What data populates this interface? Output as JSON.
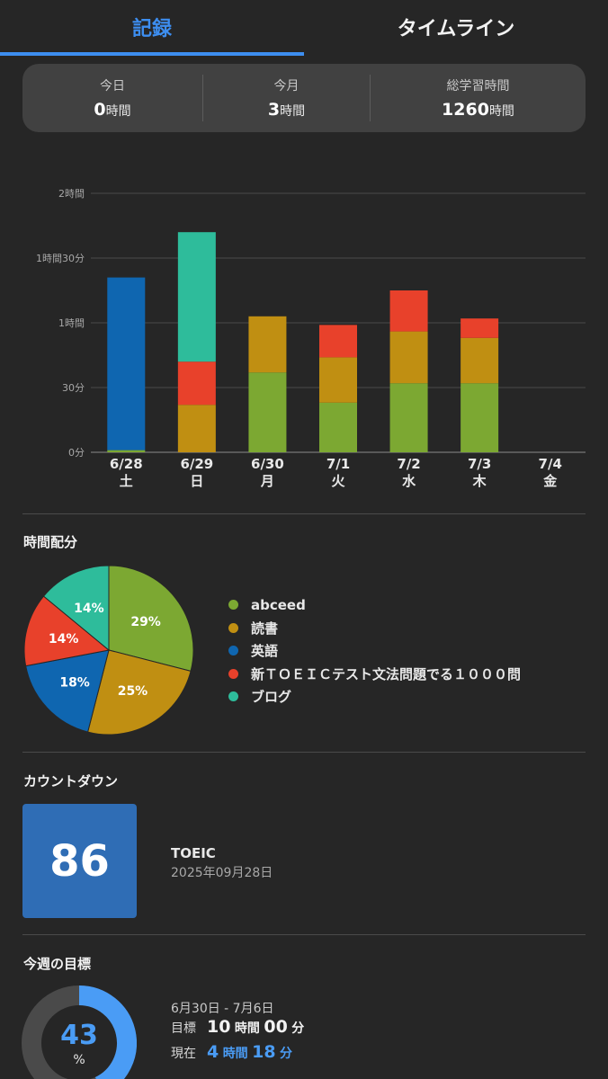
{
  "tabs": [
    {
      "label": "記録",
      "active": true
    },
    {
      "label": "タイムライン",
      "active": false
    }
  ],
  "summary": {
    "today": {
      "label": "今日",
      "value": "0",
      "unit": "時間"
    },
    "month": {
      "label": "今月",
      "value": "3",
      "unit": "時間"
    },
    "total": {
      "label": "総学習時間",
      "value": "1260",
      "unit": "時間"
    }
  },
  "colors": {
    "abceed": "#7ca832",
    "reading": "#c08f12",
    "english": "#0f66b0",
    "toeic1000": "#e8412b",
    "blog": "#2ebc9b",
    "accent": "#3d8ef0"
  },
  "chart_data": {
    "type": "bar",
    "stacked": true,
    "categories": [
      "6/28",
      "6/29",
      "6/30",
      "7/1",
      "7/2",
      "7/3",
      "7/4"
    ],
    "weekdays": [
      "土",
      "日",
      "月",
      "火",
      "水",
      "木",
      "金"
    ],
    "y_unit": "minutes",
    "ylim": [
      0,
      120
    ],
    "yticks": [
      {
        "value": 0,
        "label": "0分"
      },
      {
        "value": 30,
        "label": "30分"
      },
      {
        "value": 60,
        "label": "1時間"
      },
      {
        "value": 90,
        "label": "1時間30分"
      },
      {
        "value": 120,
        "label": "2時間"
      }
    ],
    "grid": true,
    "series": [
      {
        "key": "abceed",
        "values": [
          1,
          0,
          37,
          23,
          32,
          32,
          0
        ]
      },
      {
        "key": "reading",
        "values": [
          0,
          22,
          26,
          21,
          24,
          21,
          0
        ]
      },
      {
        "key": "english",
        "values": [
          80,
          0,
          0,
          0,
          0,
          0,
          0
        ]
      },
      {
        "key": "toeic1000",
        "values": [
          0,
          20,
          0,
          15,
          19,
          9,
          0
        ]
      },
      {
        "key": "blog",
        "values": [
          0,
          60,
          0,
          0,
          0,
          0,
          0
        ]
      }
    ]
  },
  "distribution": {
    "title": "時間配分",
    "chart_data": {
      "type": "pie",
      "slices": [
        {
          "key": "abceed",
          "label": "abceed",
          "value": 29,
          "text": "29%"
        },
        {
          "key": "reading",
          "label": "読書",
          "value": 25,
          "text": "25%"
        },
        {
          "key": "english",
          "label": "英語",
          "value": 18,
          "text": "18%"
        },
        {
          "key": "toeic1000",
          "label": "新ＴＯＥＩＣテスト文法問題でる１０００問",
          "value": 14,
          "text": "14%"
        },
        {
          "key": "blog",
          "label": "ブログ",
          "value": 14,
          "text": "14%"
        }
      ]
    }
  },
  "countdown": {
    "title": "カウントダウン",
    "days": "86",
    "name": "TOEIC",
    "date": "2025年09月28日"
  },
  "weekly_goal": {
    "title": "今週の目標",
    "percent": 43,
    "percent_text": "43",
    "percent_unit": "%",
    "range": "6月30日 - 7月6日",
    "target": {
      "label": "目標",
      "hours": "10",
      "hours_unit": "時間",
      "minutes": "00",
      "minutes_unit": "分"
    },
    "current": {
      "label": "現在",
      "hours": "4",
      "hours_unit": "時間",
      "minutes": "18",
      "minutes_unit": "分"
    }
  }
}
